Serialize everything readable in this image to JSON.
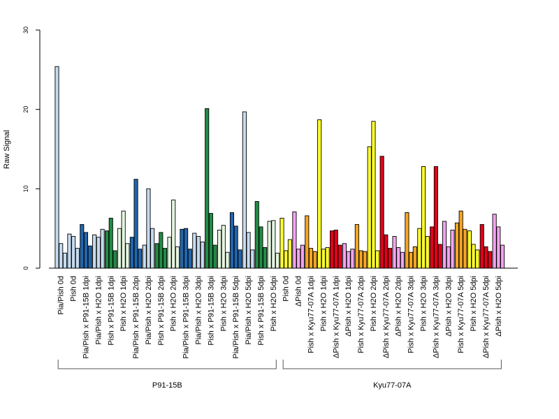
{
  "chart_data": {
    "type": "bar",
    "ylabel": "Raw Signal",
    "xlabel": "",
    "ylim": [
      0,
      30
    ],
    "yticks": [
      0,
      10,
      20,
      30
    ],
    "bars_per_category": 3,
    "categories": [
      "Pia/Pish 0d",
      "Pish 0d",
      "Pia/Pish x P91-15B 1dpi",
      "Pia/Pish x H2O 1dpi",
      "Pish x P91-15B 1dpi",
      "Pish x H2O 1dpi",
      "Pia/Pish x P91-15B 2dpi",
      "Pia/Pish x H2O 2dpi",
      "Pish x P91-15B 2dpi",
      "Pish x H2O 2dpi",
      "Pia/Pish x P91-15B 3dpi",
      "Pia/Pish x H2O 3dpi",
      "Pish x P91-15B 3dpi",
      "Pish x H2O 3dpi",
      "Pia/Pish x P91-15B 5dpi",
      "Pia/Pish x H2O 5dpi",
      "Pish x P91-15B 5dpi",
      "Pish x H2O 5dpi",
      "Pish 0d",
      "ΔPish 0d",
      "Pish x Kyu77-07A 1dpi",
      "Pish x H2O 1dpi",
      "ΔPish x Kyu77-07A 1dpi",
      "ΔPish x H2O 1dpi",
      "Pish x Kyu77-07A 2dpi",
      "Pish x H2O 2dpi",
      "ΔPish x Kyu77-07A 2dpi",
      "ΔPish x H2O 2dpi",
      "Pish x Kyu77-07A 3dpi",
      "Pish x H2O 3dpi",
      "ΔPish x Kyu77-07A 3dpi",
      "ΔPish x H2O 3dpi",
      "Pish x Kyu77-07A 5dpi",
      "Pish x H2O 5dpi",
      "ΔPish x Kyu77-07A 5dpi",
      "ΔPish x H2O 5dpi"
    ],
    "colors": [
      "#c6dbef",
      "#c6dbef",
      "#2166ac",
      "#c6dbef",
      "#238b45",
      "#e5f5e0",
      "#2166ac",
      "#c6dbef",
      "#238b45",
      "#e5f5e0",
      "#2166ac",
      "#c6dbef",
      "#238b45",
      "#e5f5e0",
      "#2166ac",
      "#c6dbef",
      "#238b45",
      "#e5f5e0",
      "#ffff33",
      "#f4a3f0",
      "#f5a623",
      "#ffff33",
      "#e3001b",
      "#f4a3f0",
      "#f5a623",
      "#ffff33",
      "#e3001b",
      "#f4a3f0",
      "#f5a623",
      "#ffff33",
      "#e3001b",
      "#f4a3f0",
      "#f5a623",
      "#ffff33",
      "#e3001b",
      "#f4a3f0"
    ],
    "values": [
      [
        25.4,
        3.1,
        1.9
      ],
      [
        4.3,
        4.0,
        2.5
      ],
      [
        5.5,
        4.5,
        2.8
      ],
      [
        4.2,
        3.9,
        4.9
      ],
      [
        4.7,
        6.3,
        2.2
      ],
      [
        5.0,
        7.2,
        3.1
      ],
      [
        3.9,
        11.2,
        2.4
      ],
      [
        2.9,
        10.0,
        5.0
      ],
      [
        3.1,
        4.5,
        2.5
      ],
      [
        3.9,
        8.6,
        2.7
      ],
      [
        4.9,
        5.0,
        2.4
      ],
      [
        4.4,
        4.0,
        3.3
      ],
      [
        20.1,
        6.9,
        2.9
      ],
      [
        4.8,
        5.4,
        2.0
      ],
      [
        7.0,
        5.3,
        2.3
      ],
      [
        19.7,
        4.5,
        2.3
      ],
      [
        8.4,
        5.2,
        2.6
      ],
      [
        5.9,
        6.0,
        1.9
      ],
      [
        6.3,
        2.2,
        3.6
      ],
      [
        7.1,
        2.4,
        2.9
      ],
      [
        6.6,
        2.5,
        2.1
      ],
      [
        18.7,
        2.4,
        2.6
      ],
      [
        4.7,
        4.8,
        2.9
      ],
      [
        3.1,
        2.1,
        2.4
      ],
      [
        5.5,
        2.2,
        2.1
      ],
      [
        15.3,
        18.5,
        2.2
      ],
      [
        14.1,
        4.2,
        2.5
      ],
      [
        4.0,
        2.6,
        2.0
      ],
      [
        7.0,
        2.0,
        2.7
      ],
      [
        5.0,
        12.8,
        4.0
      ],
      [
        5.2,
        12.8,
        3.0
      ],
      [
        5.9,
        2.7,
        4.8
      ],
      [
        5.7,
        7.2,
        4.9
      ],
      [
        4.7,
        3.0,
        2.3
      ],
      [
        5.5,
        2.7,
        2.1
      ],
      [
        6.8,
        5.2,
        2.9
      ]
    ],
    "groups": [
      {
        "label": "P91-15B",
        "start": 0,
        "end": 17
      },
      {
        "label": "Kyu77-07A",
        "start": 18,
        "end": 35
      }
    ]
  }
}
